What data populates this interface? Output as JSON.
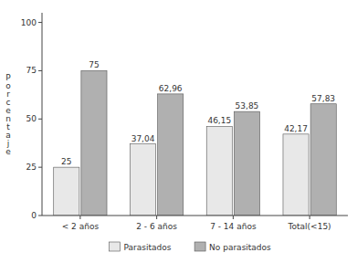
{
  "chart_data": {
    "type": "bar",
    "categories": [
      "< 2 años",
      "2 - 6 años",
      "7 - 14 años",
      "Total(<15)"
    ],
    "series": [
      {
        "name": "Parasitados",
        "color": "#e8e8e8",
        "values": [
          25,
          37.04,
          46.15,
          42.17
        ],
        "value_labels": [
          "25",
          "37,04",
          "46,15",
          "42,17"
        ]
      },
      {
        "name": "No parasitados",
        "color": "#b0b0b0",
        "values": [
          75,
          62.96,
          53.85,
          57.83
        ],
        "value_labels": [
          "75",
          "62,96",
          "53,85",
          "57,83"
        ]
      }
    ],
    "y_label": "Porcentaje",
    "ylim": [
      0,
      105
    ],
    "yticks": [
      0,
      25,
      50,
      75,
      100
    ],
    "grid": false,
    "legend": "bottom",
    "data_labels": true
  }
}
